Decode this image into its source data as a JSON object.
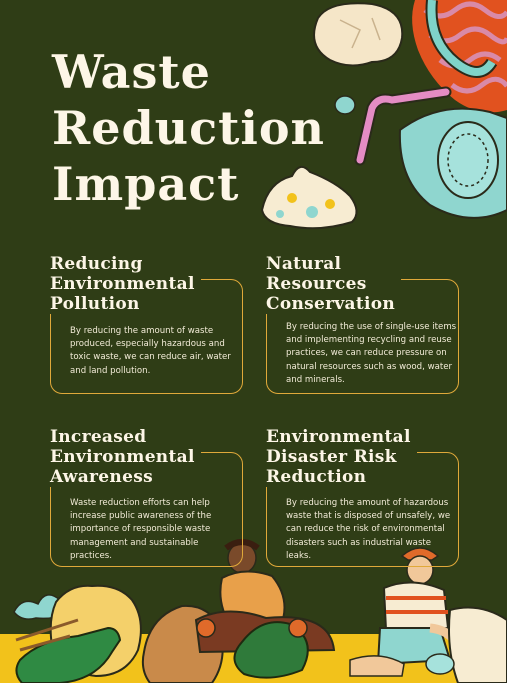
{
  "title": {
    "line1": "Waste",
    "line2": "Reduction",
    "line3": "Impact"
  },
  "cards": [
    {
      "heading": [
        "Reducing",
        "Environmental",
        "Pollution"
      ],
      "body": "By reducing the amount of waste produced, especially hazardous and toxic waste, we can reduce air, water and land pollution."
    },
    {
      "heading": [
        "Natural",
        "Resources",
        "Conservation"
      ],
      "body": "By reducing the use of single-use items and implementing recycling and reuse practices, we can reduce pressure on natural resources such as wood, water and minerals."
    },
    {
      "heading": [
        "Increased",
        "Environmental",
        "Awareness"
      ],
      "body": "Waste reduction efforts can help increase public awareness of the importance of responsible waste management and sustainable practices."
    },
    {
      "heading": [
        "Environmental",
        "Disaster Risk",
        "Reduction"
      ],
      "body": "By reducing the amount of hazardous waste that is disposed of unsafely, we can reduce the risk of environmental disasters such as industrial waste leaks."
    }
  ],
  "colors": {
    "background": "#2f3d16",
    "text": "#fdf6e7",
    "accent_border": "#e0a93a",
    "ground": "#f2c21b"
  }
}
